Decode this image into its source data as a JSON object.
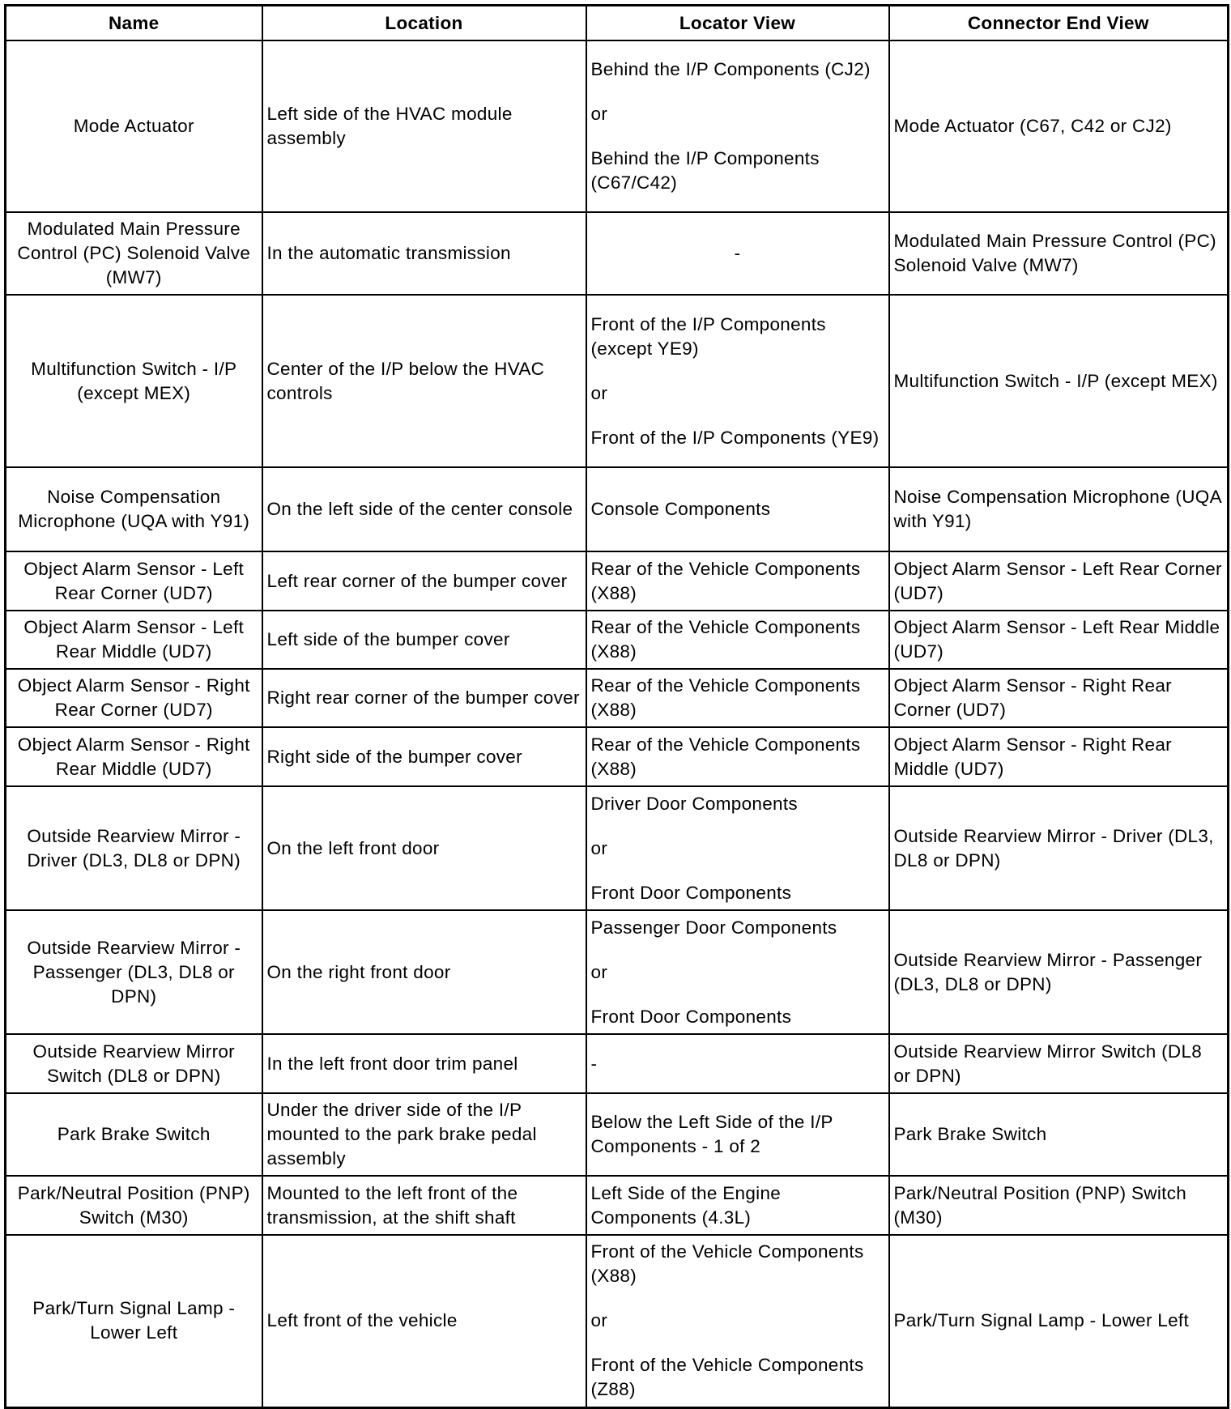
{
  "headers": [
    "Name",
    "Location",
    "Locator View",
    "Connector End View"
  ],
  "rows": [
    {
      "name": "Mode Actuator",
      "location": "Left side of the HVAC module assembly",
      "locator": [
        "Behind the I/P Components (CJ2)",
        "or",
        "Behind the I/P Components (C67/C42)"
      ],
      "connector": "Mode Actuator (C67, C42 or CJ2)"
    },
    {
      "name": "Modulated Main Pressure Control (PC) Solenoid Valve (MW7)",
      "location": "In the automatic transmission",
      "locator": [
        "-"
      ],
      "locator_center": true,
      "connector": "Modulated Main Pressure Control (PC) Solenoid Valve (MW7)"
    },
    {
      "name": "Multifunction Switch - I/P (except MEX)",
      "location": "Center of the I/P below the HVAC controls",
      "locator": [
        "Front of the I/P Components (except YE9)",
        "or",
        "Front of the I/P Components (YE9)"
      ],
      "connector": "Multifunction Switch - I/P (except MEX)"
    },
    {
      "name": "Noise Compensation Microphone (UQA with Y91)",
      "location": "On the left side of the center console",
      "locator": [
        "Console Components"
      ],
      "connector": "Noise Compensation Microphone (UQA with Y91)"
    },
    {
      "name": "Object Alarm Sensor - Left Rear Corner (UD7)",
      "location": "Left rear corner of the bumper cover",
      "locator": [
        "Rear of the Vehicle Components (X88)"
      ],
      "connector": "Object Alarm Sensor - Left Rear Corner (UD7)"
    },
    {
      "name": "Object Alarm Sensor - Left Rear Middle (UD7)",
      "location": "Left side of the bumper cover",
      "locator": [
        "Rear of the Vehicle Components (X88)"
      ],
      "connector": "Object Alarm Sensor - Left Rear Middle (UD7)"
    },
    {
      "name": "Object Alarm Sensor - Right Rear Corner (UD7)",
      "location": "Right rear corner of the bumper cover",
      "locator": [
        "Rear of the Vehicle Components (X88)"
      ],
      "connector": "Object Alarm Sensor - Right Rear Corner (UD7)"
    },
    {
      "name": "Object Alarm Sensor - Right Rear Middle (UD7)",
      "location": "Right side of the bumper cover",
      "locator": [
        "Rear of the Vehicle Components (X88)"
      ],
      "connector": "Object Alarm Sensor - Right Rear Middle (UD7)"
    },
    {
      "name": "Outside Rearview Mirror - Driver (DL3, DL8 or DPN)",
      "location": "On the left front door",
      "locator": [
        "Driver Door Components",
        "or",
        "Front Door Components"
      ],
      "connector": "Outside Rearview Mirror - Driver (DL3, DL8 or DPN)"
    },
    {
      "name": "Outside Rearview Mirror - Passenger (DL3, DL8 or DPN)",
      "location": "On the right front door",
      "locator": [
        "Passenger Door Components",
        "or",
        "Front Door Components"
      ],
      "connector": "Outside Rearview Mirror - Passenger (DL3, DL8 or DPN)"
    },
    {
      "name": "Outside Rearview Mirror Switch (DL8 or DPN)",
      "location": "In the left front door trim panel",
      "locator": [
        "-"
      ],
      "connector": "Outside Rearview Mirror Switch (DL8 or DPN)"
    },
    {
      "name": "Park Brake Switch",
      "location": "Under the driver side of the I/P mounted to the park brake pedal assembly",
      "locator": [
        "Below the Left Side of the I/P Components - 1 of 2"
      ],
      "connector": "Park Brake Switch"
    },
    {
      "name": "Park/Neutral Position (PNP) Switch (M30)",
      "location": "Mounted to the left front of the transmission, at the shift shaft",
      "locator": [
        "Left Side of the Engine Components (4.3L)"
      ],
      "connector": "Park/Neutral Position (PNP) Switch (M30)"
    },
    {
      "name": "Park/Turn Signal Lamp - Lower Left",
      "location": "Left front of the vehicle",
      "locator": [
        "Front of the Vehicle Components (X88)",
        "or",
        "Front of the Vehicle Components (Z88)"
      ],
      "connector": "Park/Turn Signal Lamp - Lower Left"
    }
  ]
}
